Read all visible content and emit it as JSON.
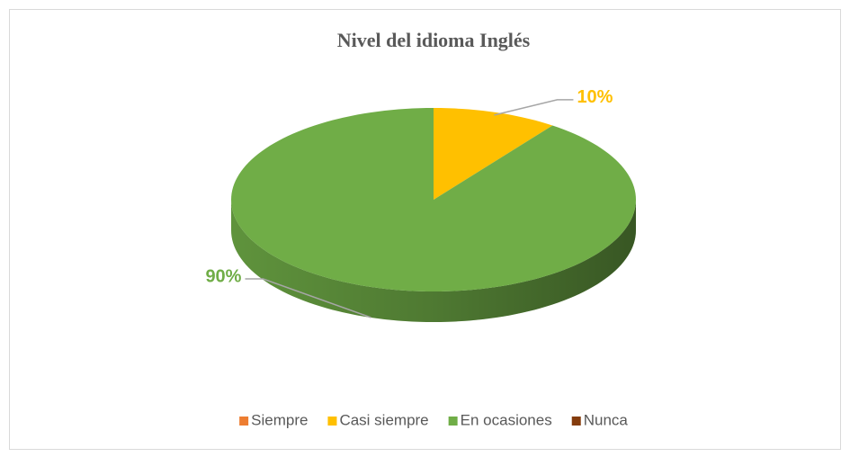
{
  "chart_data": {
    "type": "pie",
    "title": "Nivel del idioma Inglés",
    "categories": [
      "Siempre",
      "Casi siempre",
      "En ocasiones",
      "Nunca"
    ],
    "values": [
      0,
      10,
      90,
      0
    ],
    "value_labels": [
      null,
      "10%",
      "90%",
      null
    ],
    "colors": [
      "#ed7d31",
      "#ffc000",
      "#70ad47",
      "#843c0c"
    ],
    "legend": "bottom"
  }
}
